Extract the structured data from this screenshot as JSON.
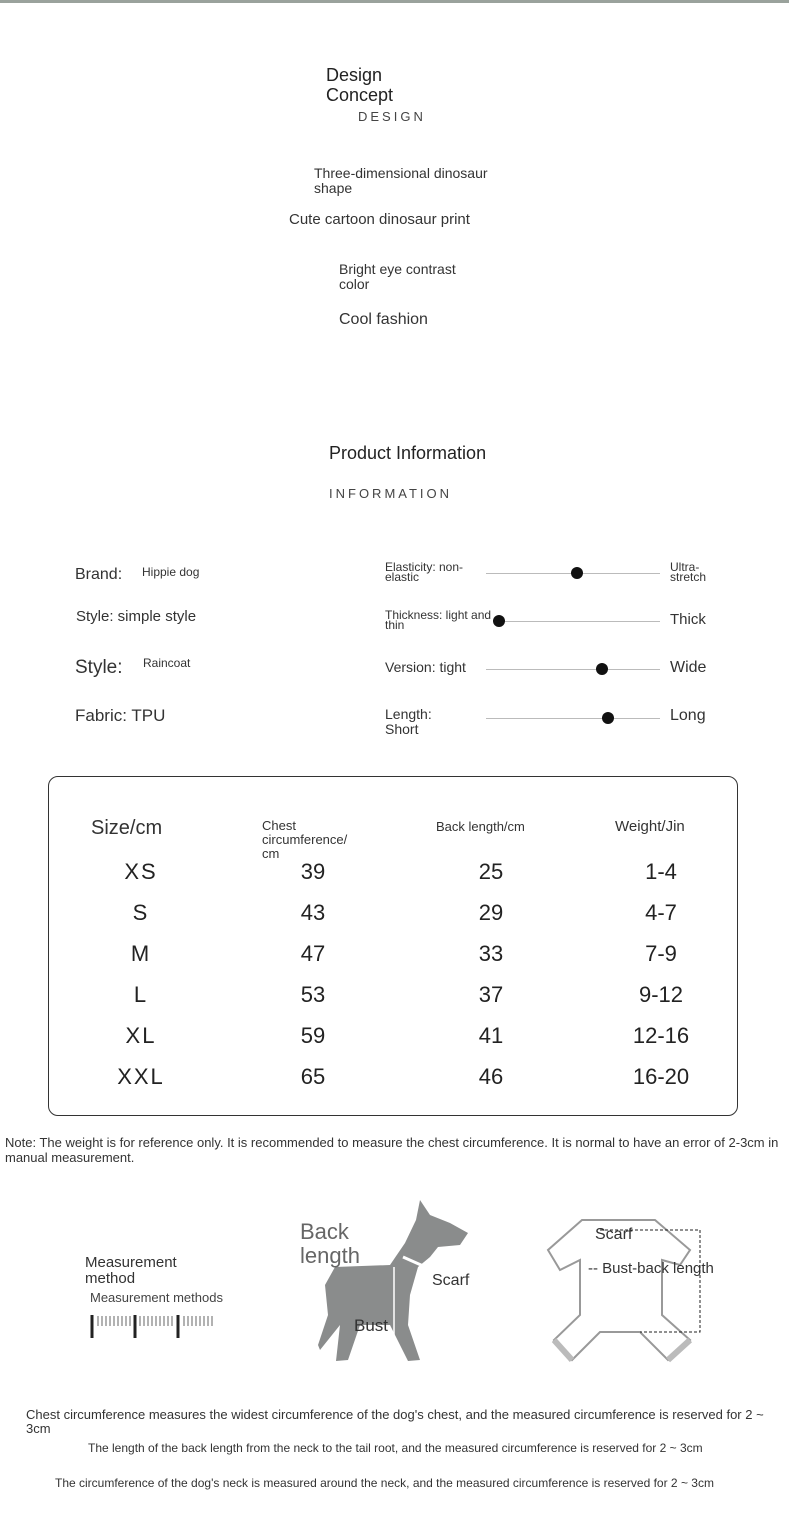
{
  "design": {
    "title": "Design Concept",
    "subtitle": "DESIGN",
    "features": [
      "Three-dimensional dinosaur shape",
      "Cute cartoon dinosaur print",
      "Bright eye contrast color",
      "Cool fashion"
    ]
  },
  "info": {
    "title": "Product Information",
    "subtitle": "INFORMATION",
    "details": [
      {
        "label": "Brand:",
        "value": "Hippie dog"
      },
      {
        "label": "Style: simple style"
      },
      {
        "label": "Style:",
        "value": "Raincoat"
      },
      {
        "label": "Fabric: TPU"
      }
    ],
    "sliders": [
      {
        "left": "Elasticity: non-elastic",
        "right": "Ultra-stretch"
      },
      {
        "left": "Thickness: light and thin",
        "right": "Thick"
      },
      {
        "left": "Version: tight",
        "right": "Wide"
      },
      {
        "left": "Length: Short",
        "right": "Long"
      }
    ]
  },
  "table": {
    "header": [
      "Size/cm",
      "Chest circumference/ cm",
      "Back length/cm",
      "Weight/Jin"
    ],
    "rows": [
      [
        "XS",
        39,
        25,
        "1-4"
      ],
      [
        "S",
        43,
        29,
        "4-7"
      ],
      [
        "M",
        47,
        33,
        "7-9"
      ],
      [
        "L",
        53,
        37,
        "9-12"
      ],
      [
        "XL",
        59,
        41,
        "12-16"
      ],
      [
        "XXL",
        65,
        46,
        "16-20"
      ]
    ]
  },
  "note": "Note: The weight is for reference only. It is recommended to measure the chest circumference. It is normal to have an error of 2-3cm in manual measurement.",
  "measurement": {
    "title": "Measurement method",
    "subtitle": "Measurement methods",
    "dog_labels": [
      "Back length",
      "Scarf",
      "Bust"
    ],
    "garment_labels": [
      "Scarf",
      "-- Bust-back length"
    ]
  },
  "footer": [
    "Chest circumference measures the widest circumference of the dog's chest, and the measured circumference is reserved for 2 ~ 3cm",
    "The length of the back length from the neck to the tail root, and the measured circumference is reserved for 2 ~ 3cm",
    "The circumference of the dog's neck is measured around the neck, and the measured circumference is reserved for 2 ~ 3cm"
  ]
}
